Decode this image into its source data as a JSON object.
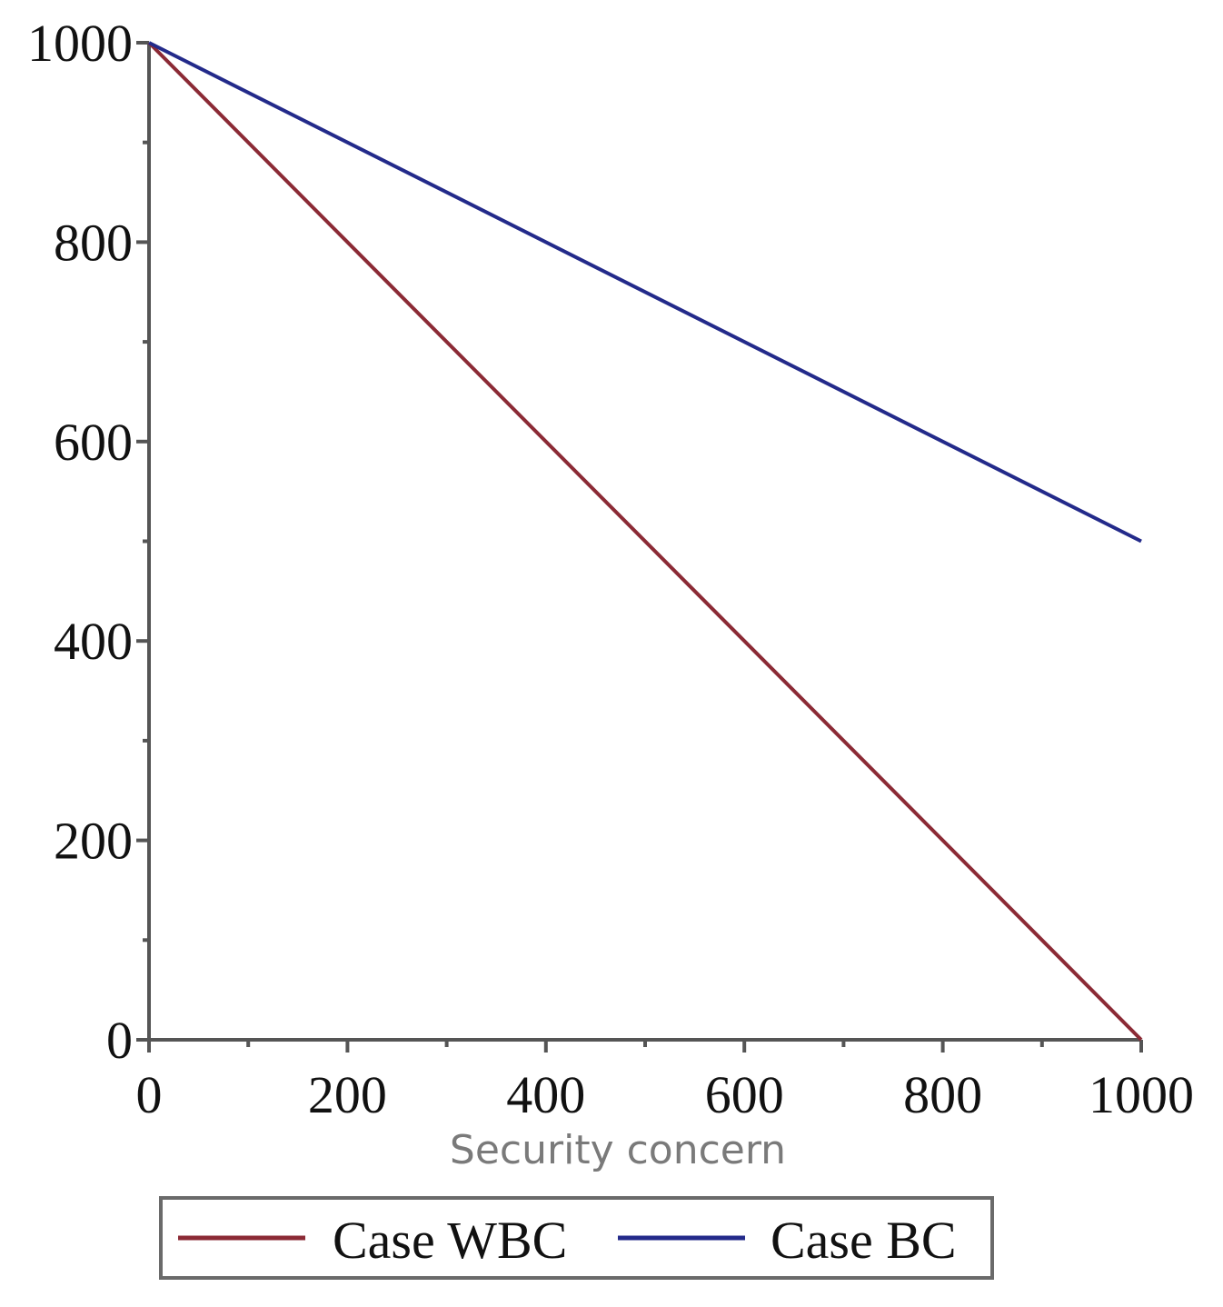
{
  "chart_data": {
    "type": "line",
    "title": "",
    "xlabel": "Security concern",
    "ylabel": "",
    "xlim": [
      0,
      1000
    ],
    "ylim": [
      0,
      1000
    ],
    "x_ticks": [
      0,
      200,
      400,
      600,
      800,
      1000
    ],
    "y_ticks": [
      0,
      200,
      400,
      600,
      800,
      1000
    ],
    "x_minor_ticks": [
      100,
      300,
      500,
      700,
      900
    ],
    "y_minor_ticks": [
      100,
      300,
      500,
      700,
      900
    ],
    "x_tick_labels": [
      "0",
      "200",
      "400",
      "600",
      "800",
      "1000"
    ],
    "y_tick_labels": [
      "0",
      "200",
      "400",
      "600",
      "800",
      "1000"
    ],
    "grid": false,
    "legend_position": "bottom",
    "series": [
      {
        "name": "Case WBC",
        "color": "#8b2a35",
        "x": [
          0,
          1000
        ],
        "y": [
          1000,
          0
        ]
      },
      {
        "name": "Case BC",
        "color": "#232a8a",
        "x": [
          0,
          1000
        ],
        "y": [
          1000,
          500
        ]
      }
    ]
  }
}
